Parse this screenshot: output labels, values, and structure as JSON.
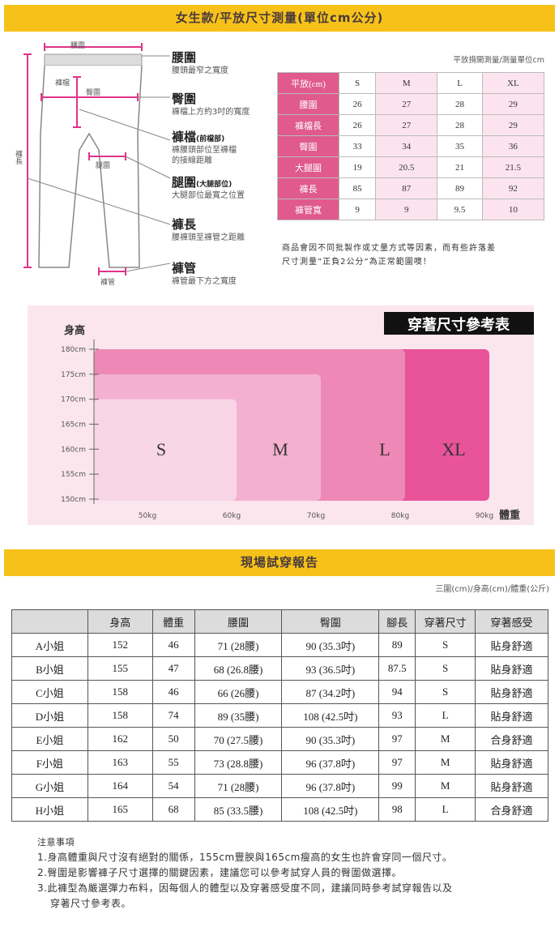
{
  "section1": {
    "title": "女生款/平放尺寸測量(單位cm公分)",
    "diagram": {
      "labels": {
        "waist_top": "腰圍",
        "crotch": "褲檔",
        "hip": "臀圍",
        "thigh": "腿圍",
        "length": "褲長",
        "hem": "褲管"
      },
      "annotations": [
        {
          "title": "腰圍",
          "sub": "",
          "desc": [
            "腰頭最窄之寬度"
          ]
        },
        {
          "title": "臀圍",
          "sub": "",
          "desc": [
            "褲檔上方約3吋的寬度"
          ]
        },
        {
          "title": "褲檔",
          "sub": "(前檔部)",
          "desc": [
            "褲腰頭部位至褲檔",
            "的接線距離"
          ]
        },
        {
          "title": "腿圍",
          "sub": "(大腿部位)",
          "desc": [
            "大腿部位最寬之位置"
          ]
        },
        {
          "title": "褲長",
          "sub": "",
          "desc": [
            "腰褲頭至褲管之距離"
          ]
        },
        {
          "title": "褲管",
          "sub": "",
          "desc": [
            "褲管最下方之寬度"
          ]
        }
      ]
    },
    "size_table": {
      "caption": "平放揹開測量/測量單位cm",
      "header": [
        "平放(cm)",
        "S",
        "M",
        "L",
        "XL"
      ],
      "rows": [
        [
          "腰圍",
          "26",
          "27",
          "28",
          "29"
        ],
        [
          "褲檔長",
          "26",
          "27",
          "28",
          "29"
        ],
        [
          "臀圍",
          "33",
          "34",
          "35",
          "36"
        ],
        [
          "大腿圍",
          "19",
          "20.5",
          "21",
          "21.5"
        ],
        [
          "褲長",
          "85",
          "87",
          "89",
          "92"
        ],
        [
          "褲管寬",
          "9",
          "9",
          "9.5",
          "10"
        ]
      ],
      "note": [
        "商品會因不同批製作或丈量方式等因素，而有些許落差",
        "尺寸測量”正負2公分”為正常範圍噢！"
      ]
    }
  },
  "chart_data": {
    "type": "area",
    "title": "穿著尺寸參考表",
    "ylabel": "身高",
    "xlabel": "體重",
    "y_ticks": [
      "180cm",
      "175cm",
      "170cm",
      "165cm",
      "160cm",
      "155cm",
      "150cm"
    ],
    "x_ticks": [
      "50kg",
      "60kg",
      "70kg",
      "80kg",
      "90kg"
    ],
    "ylim": [
      150,
      180
    ],
    "xlim": [
      40,
      90
    ],
    "regions": [
      {
        "size": "XL",
        "max_weight": 90,
        "max_height": 180,
        "color": "#e8539a"
      },
      {
        "size": "L",
        "max_weight": 80,
        "max_height": 180,
        "color": "#ee88b6"
      },
      {
        "size": "M",
        "max_weight": 70,
        "max_height": 175,
        "color": "#f4b0d0"
      },
      {
        "size": "S",
        "max_weight": 60,
        "max_height": 170,
        "color": "#f9d6e6"
      }
    ]
  },
  "section2": {
    "title": "現場試穿報告",
    "unit_note": "三圍(cm)/身高(cm)/體重(公斤)",
    "header": [
      "",
      "身高",
      "體重",
      "腰圍",
      "臀圍",
      "腳長",
      "穿著尺寸",
      "穿著感受"
    ],
    "rows": [
      [
        "A小姐",
        "152",
        "46",
        "71 (28腰)",
        "90 (35.3吋)",
        "89",
        "S",
        "貼身舒適"
      ],
      [
        "B小姐",
        "155",
        "47",
        "68 (26.8腰)",
        "93 (36.5吋)",
        "87.5",
        "S",
        "貼身舒適"
      ],
      [
        "C小姐",
        "158",
        "46",
        "66 (26腰)",
        "87 (34.2吋)",
        "94",
        "S",
        "貼身舒適"
      ],
      [
        "D小姐",
        "158",
        "74",
        "89 (35腰)",
        "108 (42.5吋)",
        "93",
        "L",
        "貼身舒適"
      ],
      [
        "E小姐",
        "162",
        "50",
        "70 (27.5腰)",
        "90 (35.3吋)",
        "97",
        "M",
        "合身舒適"
      ],
      [
        "F小姐",
        "163",
        "55",
        "73 (28.8腰)",
        "96 (37.8吋)",
        "97",
        "M",
        "貼身舒適"
      ],
      [
        "G小姐",
        "164",
        "54",
        "71 (28腰)",
        "96 (37.8吋)",
        "99",
        "M",
        "貼身舒適"
      ],
      [
        "H小姐",
        "165",
        "68",
        "85 (33.5腰)",
        "108 (42.5吋)",
        "98",
        "L",
        "合身舒適"
      ]
    ],
    "notes_title": "注意事項",
    "notes": [
      "1.身高體重與尺寸沒有絕對的關係，155cm豐腴與165cm瘦高的女生也許會穿同一個尺寸。",
      "2.臀圍是影響褲子尺寸選擇的關鍵因素，建議您可以參考試穿人員的臀圍做選擇。",
      "3.此褲型為嚴選彈力布料，因每個人的體型以及穿著感受度不同，建議同時參考試穿報告以及",
      "穿著尺寸參考表。"
    ]
  }
}
